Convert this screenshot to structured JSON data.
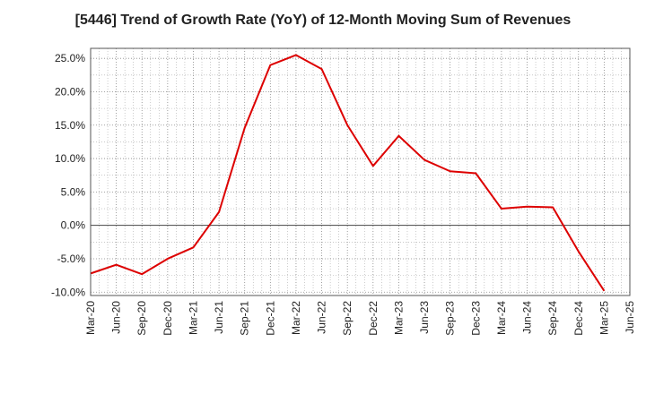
{
  "chart_data": {
    "type": "line",
    "title": "[5446]  Trend of Growth Rate (YoY) of 12-Month Moving Sum of Revenues",
    "xlabel": "",
    "ylabel": "",
    "x_tick_labels": [
      "Mar-20",
      "Jun-20",
      "Sep-20",
      "Dec-20",
      "Mar-21",
      "Jun-21",
      "Sep-21",
      "Dec-21",
      "Mar-22",
      "Jun-22",
      "Sep-22",
      "Dec-22",
      "Mar-23",
      "Jun-23",
      "Sep-23",
      "Dec-23",
      "Mar-24",
      "Jun-24",
      "Sep-24",
      "Dec-24",
      "Mar-25",
      "Jun-25"
    ],
    "y_ticks": [
      25,
      20,
      15,
      10,
      5,
      0,
      -5,
      -10
    ],
    "y_tick_labels": [
      "25.0%",
      "20.0%",
      "15.0%",
      "10.0%",
      "5.0%",
      "0.0%",
      "-5.0%",
      "-10.0%"
    ],
    "ylim": [
      -10.5,
      26.5
    ],
    "grid": true,
    "series": [
      {
        "color": "#dd0000",
        "x": [
          "Mar-20",
          "Jun-20",
          "Sep-20",
          "Dec-20",
          "Mar-21",
          "Jun-21",
          "Sep-21",
          "Dec-21",
          "Mar-22",
          "Jun-22",
          "Sep-22",
          "Dec-22",
          "Mar-23",
          "Jun-23",
          "Sep-23",
          "Dec-23",
          "Mar-24",
          "Jun-24",
          "Sep-24",
          "Dec-24",
          "Mar-25"
        ],
        "values": [
          -7.2,
          -5.9,
          -7.3,
          -5.0,
          -3.3,
          2.0,
          14.6,
          24.0,
          25.5,
          23.4,
          15.0,
          8.9,
          13.4,
          9.8,
          8.1,
          7.8,
          2.5,
          2.8,
          2.7,
          -3.9,
          -9.8
        ]
      }
    ]
  }
}
